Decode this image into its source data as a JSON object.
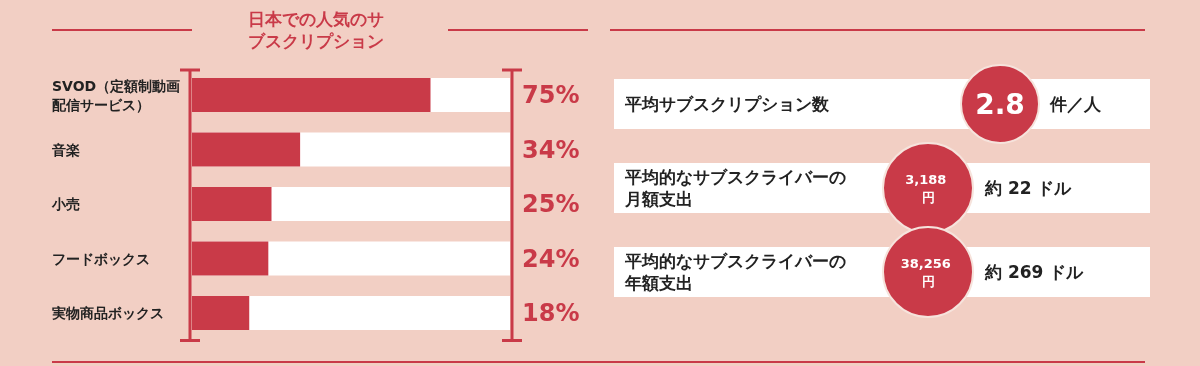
{
  "chart_data": [
    {
      "type": "bar",
      "orientation": "horizontal",
      "title": "日本での人気のサブスクリプション",
      "categories": [
        "SVOD（定額制動画配信サービス）",
        "音楽",
        "小売",
        "フードボックス",
        "実物商品ボックス"
      ],
      "values": [
        75,
        34,
        25,
        24,
        18
      ],
      "color": "#c93a48",
      "xlim": [
        0,
        100
      ],
      "data_labels": true,
      "value_labels": [
        "75%",
        "34%",
        "25%",
        "24%",
        "18%"
      ]
    },
    {
      "type": "other",
      "annotations": [
        "平均サブスクリプション数",
        "2.8",
        "件／人",
        "平均的なサブスクライバーの月額支出",
        "3,188 円",
        "約 22 ドル",
        "平均的なサブスクライバーの年額支出",
        "38,256 円",
        "約 269 ドル"
      ]
    }
  ]
}
